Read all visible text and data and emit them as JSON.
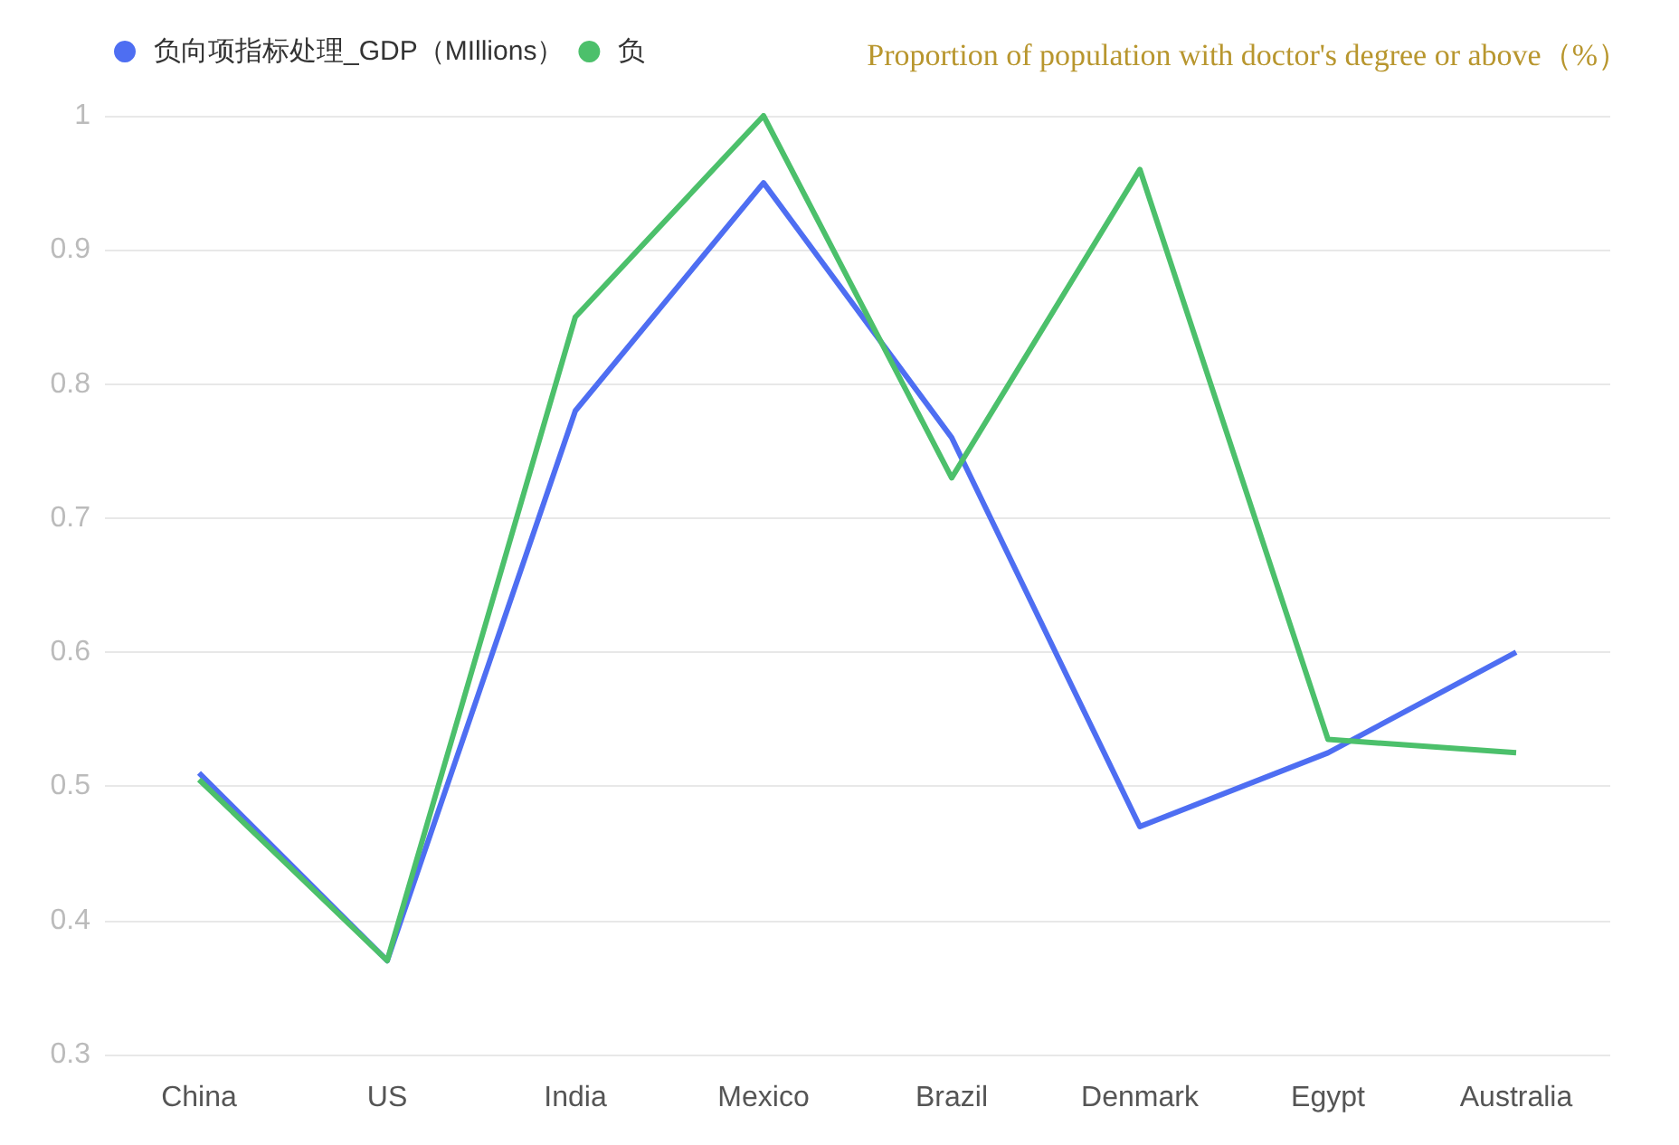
{
  "chart_data": {
    "type": "line",
    "categories": [
      "China",
      "US",
      "India",
      "Mexico",
      "Brazil",
      "Denmark",
      "Egypt",
      "Australia"
    ],
    "series": [
      {
        "name": "负向项指标处理_GDP（MIllions）",
        "color": "#4e6ef2",
        "values": [
          0.51,
          0.37,
          0.78,
          0.95,
          0.76,
          0.47,
          0.525,
          0.6
        ]
      },
      {
        "name": "负",
        "color": "#4cc06b",
        "values": [
          0.505,
          0.37,
          0.85,
          1.0,
          0.73,
          0.96,
          0.535,
          0.525
        ]
      }
    ],
    "annotations": [
      "Proportion of population with doctor's degree or above（%）"
    ],
    "ylim": [
      0.3,
      1
    ],
    "yticks": [
      0.3,
      0.4,
      0.5,
      0.6,
      0.7,
      0.8,
      0.9,
      1
    ],
    "grid": "y",
    "legend": "top left",
    "marker": "none",
    "line_style": "solid"
  }
}
